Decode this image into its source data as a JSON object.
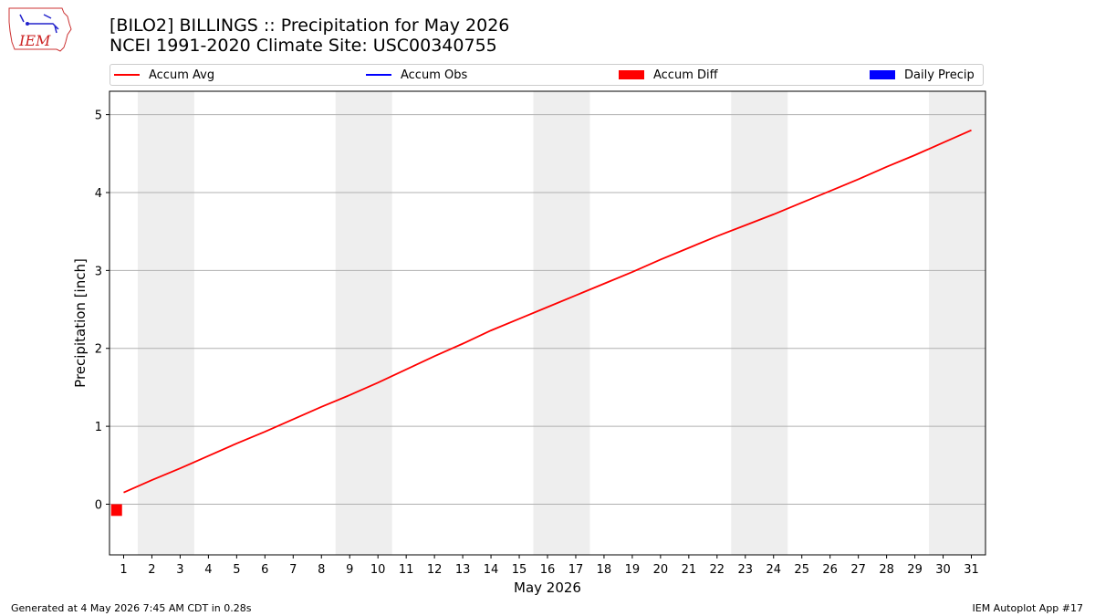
{
  "header": {
    "title_line1": "[BILO2] BILLINGS :: Precipitation for May 2026",
    "title_line2": "NCEI 1991-2020 Climate Site: USC00340755",
    "logo_text": "IEM"
  },
  "legend": [
    {
      "label": "Accum Avg",
      "kind": "line",
      "color": "#ff0000"
    },
    {
      "label": "Accum Obs",
      "kind": "line",
      "color": "#0000ff"
    },
    {
      "label": "Accum Diff",
      "kind": "box",
      "color": "#ff0000"
    },
    {
      "label": "Daily Precip",
      "kind": "box",
      "color": "#0000ff"
    }
  ],
  "footer": {
    "generated": "Generated at 4 May 2026 7:45 AM CDT in 0.28s",
    "app": "IEM Autoplot App #17"
  },
  "chart_data": {
    "type": "line",
    "title": "[BILO2] BILLINGS :: Precipitation for May 2026",
    "subtitle": "NCEI 1991-2020 Climate Site: USC00340755",
    "xlabel": "May 2026",
    "ylabel": "Precipitation [inch]",
    "x": [
      1,
      2,
      3,
      4,
      5,
      6,
      7,
      8,
      9,
      10,
      11,
      12,
      13,
      14,
      15,
      16,
      17,
      18,
      19,
      20,
      21,
      22,
      23,
      24,
      25,
      26,
      27,
      28,
      29,
      30,
      31
    ],
    "xlim": [
      0.5,
      31.5
    ],
    "ylim": [
      -0.65,
      5.3
    ],
    "yticks": [
      0,
      1,
      2,
      3,
      4,
      5
    ],
    "grid": "y",
    "legend_position": "top",
    "weekend_shading": [
      [
        1.5,
        3.5
      ],
      [
        8.5,
        10.5
      ],
      [
        15.5,
        17.5
      ],
      [
        22.5,
        24.5
      ],
      [
        29.5,
        31.5
      ]
    ],
    "shade_color": "#eeeeee",
    "series": [
      {
        "name": "Accum Avg",
        "kind": "line",
        "color": "#ff0000",
        "values": [
          0.15,
          0.31,
          0.46,
          0.62,
          0.78,
          0.93,
          1.09,
          1.25,
          1.4,
          1.56,
          1.73,
          1.9,
          2.06,
          2.23,
          2.38,
          2.53,
          2.68,
          2.83,
          2.98,
          3.14,
          3.29,
          3.44,
          3.58,
          3.72,
          3.87,
          4.02,
          4.17,
          4.33,
          4.48,
          4.64,
          4.8
        ]
      },
      {
        "name": "Accum Diff",
        "kind": "bar",
        "color": "#ff0000",
        "x": [
          0.75
        ],
        "values": [
          -0.15
        ]
      }
    ]
  }
}
